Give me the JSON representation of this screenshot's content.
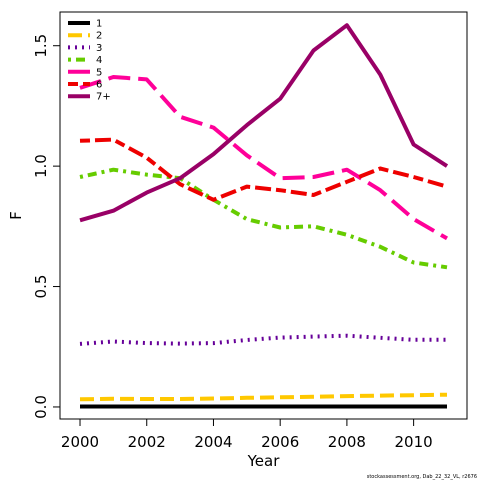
{
  "chart_data": {
    "type": "line",
    "title": "",
    "xlabel": "Year",
    "ylabel": "F",
    "xlim": [
      1999.4,
      2011.6
    ],
    "ylim": [
      -0.05,
      1.64
    ],
    "x_ticks": [
      2000,
      2002,
      2004,
      2006,
      2008,
      2010
    ],
    "x_tick_labels": [
      "2000",
      "2002",
      "2004",
      "2006",
      "2008",
      "2010"
    ],
    "y_ticks": [
      0.0,
      0.5,
      1.0,
      1.5
    ],
    "y_tick_labels": [
      "0.0",
      "0.5",
      "1.0",
      "1.5"
    ],
    "grid": false,
    "legend_position": "top-left",
    "x": [
      2000,
      2001,
      2002,
      2003,
      2004,
      2005,
      2006,
      2007,
      2008,
      2009,
      2010,
      2011
    ],
    "series": [
      {
        "name": "1",
        "color": "#000000",
        "dash": "solid",
        "values": [
          0.002,
          0.002,
          0.002,
          0.002,
          0.002,
          0.002,
          0.002,
          0.002,
          0.002,
          0.002,
          0.002,
          0.002
        ]
      },
      {
        "name": "2",
        "color": "#FFC800",
        "dash": "long",
        "values": [
          0.032,
          0.034,
          0.033,
          0.033,
          0.035,
          0.038,
          0.04,
          0.042,
          0.045,
          0.047,
          0.049,
          0.051
        ]
      },
      {
        "name": "3",
        "color": "#660099",
        "dash": "dotted",
        "values": [
          0.262,
          0.272,
          0.265,
          0.263,
          0.265,
          0.278,
          0.288,
          0.292,
          0.296,
          0.287,
          0.279,
          0.279
        ]
      },
      {
        "name": "4",
        "color": "#66CC00",
        "dash": "dotdash",
        "values": [
          0.955,
          0.985,
          0.965,
          0.95,
          0.86,
          0.78,
          0.745,
          0.75,
          0.715,
          0.665,
          0.6,
          0.58
        ]
      },
      {
        "name": "5",
        "color": "#FF0099",
        "dash": "longdash",
        "values": [
          1.325,
          1.37,
          1.36,
          1.205,
          1.16,
          1.045,
          0.95,
          0.955,
          0.985,
          0.9,
          0.78,
          0.7
        ]
      },
      {
        "name": "6",
        "color": "#EE0000",
        "dash": "twodash",
        "values": [
          1.105,
          1.11,
          1.035,
          0.925,
          0.86,
          0.915,
          0.9,
          0.88,
          0.935,
          0.99,
          0.955,
          0.915
        ]
      },
      {
        "name": "7+",
        "color": "#990066",
        "dash": "solid",
        "values": [
          0.775,
          0.815,
          0.89,
          0.95,
          1.05,
          1.17,
          1.28,
          1.48,
          1.585,
          1.38,
          1.09,
          1.0
        ]
      }
    ]
  },
  "footer": {
    "source_text": "stockassessment.org, Dab_22_32_VL, r2676"
  }
}
